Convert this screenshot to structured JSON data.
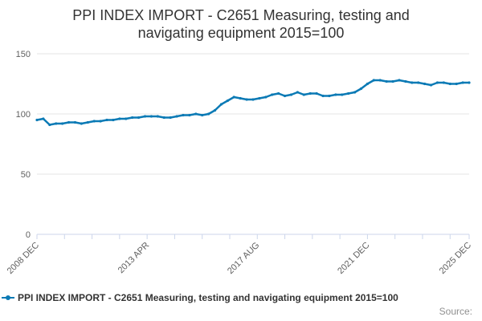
{
  "title_line1": "PPI INDEX IMPORT - C2651 Measuring, testing and",
  "title_line2": "navigating equipment 2015=100",
  "credits": "Source:",
  "colors": {
    "series": "#0b7ab5",
    "grid": "#e6e6e6",
    "axis": "#ccd6eb",
    "text": "#333333",
    "tick_text": "#606060"
  },
  "chart_data": {
    "type": "line",
    "title": "PPI INDEX IMPORT - C2651 Measuring, testing and navigating equipment 2015=100",
    "xlabel": "",
    "ylabel": "",
    "x_range": [
      "2008 DEC",
      "2025 DEC"
    ],
    "ylim": [
      0,
      150
    ],
    "y_ticks": [
      0,
      50,
      100,
      150
    ],
    "x_ticks": [
      "2008 DEC",
      "2013 APR",
      "2017 AUG",
      "2021 DEC",
      "2025 DEC"
    ],
    "grid": true,
    "legend_position": "bottom-left",
    "series": [
      {
        "name": "PPI INDEX IMPORT - C2651 Measuring, testing and navigating equipment 2015=100",
        "x": [
          "2008-12",
          "2009-03",
          "2009-06",
          "2009-09",
          "2009-12",
          "2010-03",
          "2010-06",
          "2010-09",
          "2010-12",
          "2011-03",
          "2011-06",
          "2011-09",
          "2011-12",
          "2012-03",
          "2012-06",
          "2012-09",
          "2012-12",
          "2013-03",
          "2013-06",
          "2013-09",
          "2013-12",
          "2014-03",
          "2014-06",
          "2014-09",
          "2014-12",
          "2015-03",
          "2015-06",
          "2015-09",
          "2015-12",
          "2016-03",
          "2016-06",
          "2016-09",
          "2016-12",
          "2017-03",
          "2017-06",
          "2017-09",
          "2017-12",
          "2018-03",
          "2018-06",
          "2018-09",
          "2018-12",
          "2019-03",
          "2019-06",
          "2019-09",
          "2019-12",
          "2020-03",
          "2020-06",
          "2020-09",
          "2020-12",
          "2021-03",
          "2021-06",
          "2021-09",
          "2021-12",
          "2022-03",
          "2022-06",
          "2022-09",
          "2022-12",
          "2023-03",
          "2023-06",
          "2023-09",
          "2023-12",
          "2024-03",
          "2024-06",
          "2024-09",
          "2024-12",
          "2025-03",
          "2025-06",
          "2025-09",
          "2025-12"
        ],
        "values": [
          95,
          96,
          91,
          92,
          92,
          93,
          93,
          92,
          93,
          94,
          94,
          95,
          95,
          96,
          96,
          97,
          97,
          98,
          98,
          98,
          97,
          97,
          98,
          99,
          99,
          100,
          99,
          100,
          103,
          108,
          111,
          114,
          113,
          112,
          112,
          113,
          114,
          116,
          117,
          115,
          116,
          118,
          116,
          117,
          117,
          115,
          115,
          116,
          116,
          117,
          118,
          121,
          125,
          128,
          128,
          127,
          127,
          128,
          127,
          126,
          126,
          125,
          124,
          126,
          126,
          125,
          125,
          126,
          126
        ]
      }
    ]
  }
}
